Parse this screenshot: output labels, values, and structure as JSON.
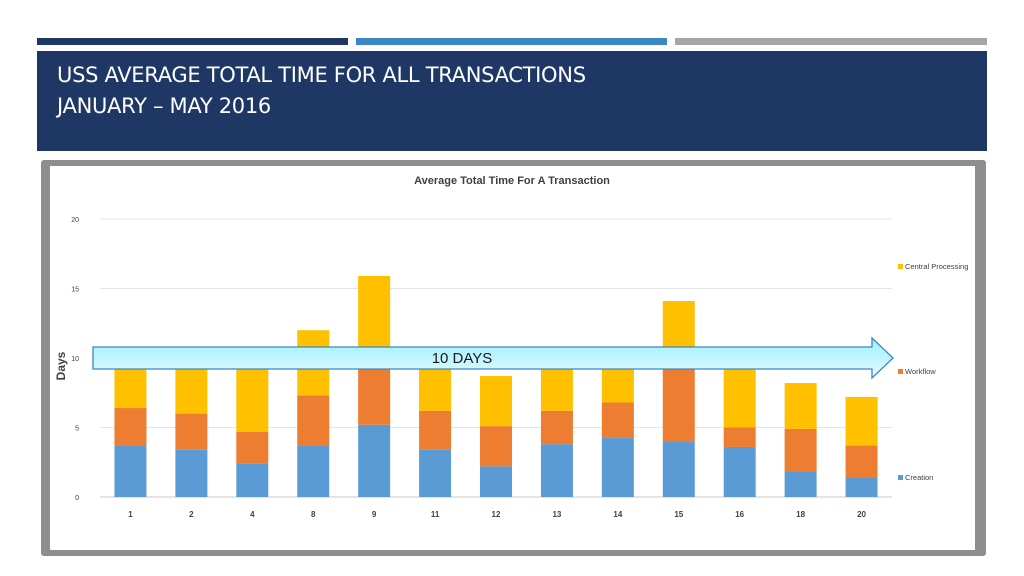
{
  "slide": {
    "title_line1": "USS AVERAGE TOTAL TIME FOR ALL TRANSACTIONS",
    "title_line2": "JANUARY – MAY 2016",
    "accent_colors": [
      "#1f3764",
      "#3b86c5",
      "#a6a6a6"
    ],
    "title_band_color": "#1f3764"
  },
  "annotation": {
    "label": "10 DAYS",
    "value": 10
  },
  "chart_data": {
    "type": "bar",
    "stacked": true,
    "title": "Average Total Time For A Transaction",
    "xlabel": "",
    "ylabel": "Days",
    "ylim": [
      0,
      20
    ],
    "yticks": [
      0,
      5,
      10,
      15,
      20
    ],
    "grid": true,
    "legend_position": "right",
    "categories": [
      "1",
      "2",
      "4",
      "8",
      "9",
      "11",
      "12",
      "13",
      "14",
      "15",
      "16",
      "18",
      "20"
    ],
    "series": [
      {
        "name": "Creation",
        "color": "#5b9bd5",
        "values": [
          3.7,
          3.4,
          2.4,
          3.7,
          5.2,
          3.4,
          2.2,
          3.8,
          4.3,
          4.0,
          3.6,
          1.8,
          1.4
        ]
      },
      {
        "name": "Workflow",
        "color": "#ed7d31",
        "values": [
          2.7,
          2.6,
          2.3,
          3.6,
          5.3,
          2.8,
          2.9,
          2.4,
          2.5,
          6.0,
          1.4,
          3.1,
          2.3
        ]
      },
      {
        "name": "Central Processing",
        "color": "#ffc000",
        "values": [
          4.0,
          4.3,
          4.9,
          4.7,
          5.4,
          4.0,
          3.6,
          3.6,
          3.6,
          4.1,
          5.0,
          3.3,
          3.5
        ]
      }
    ]
  }
}
